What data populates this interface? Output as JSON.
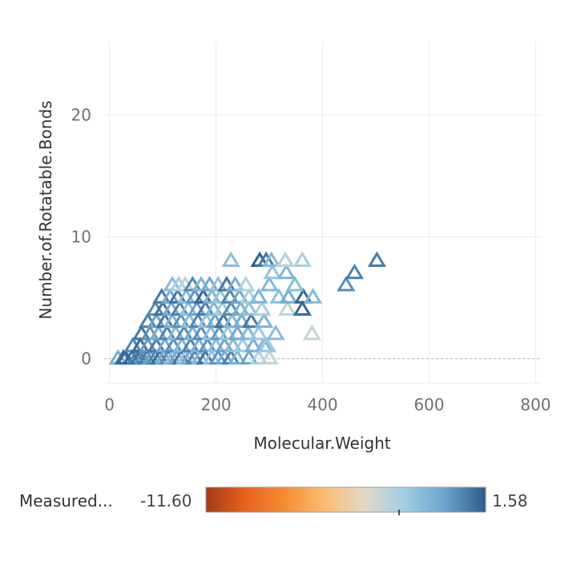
{
  "chart_data": {
    "type": "scatter",
    "marker": "triangle-open",
    "xlabel": "Molecular.Weight",
    "ylabel": "Number.of.Rotatable.Bonds",
    "xlim": [
      -10,
      810
    ],
    "ylim": [
      -2,
      26
    ],
    "xticks": [
      0,
      200,
      400,
      600,
      800
    ],
    "yticks": [
      0,
      10,
      20
    ],
    "grid": true,
    "zero_line": true,
    "legend": {
      "title": "Measured...",
      "min_label": "-11.60",
      "max_label": "1.58",
      "min": -11.6,
      "max": 1.58,
      "marker_value": -2.5,
      "placement": "bottom"
    },
    "color_scale": {
      "stops": [
        "#a3391b",
        "#e8631c",
        "#f68d35",
        "#fbbf74",
        "#dfd9c8",
        "#9fcde3",
        "#6aa3cd",
        "#2c5c8a"
      ]
    },
    "points": [
      {
        "x": 16,
        "y": 0,
        "c": -0.8
      },
      {
        "x": 26,
        "y": 0,
        "c": 0.9
      },
      {
        "x": 30,
        "y": 0,
        "c": 1.2
      },
      {
        "x": 42,
        "y": 0,
        "c": 1.3
      },
      {
        "x": 50,
        "y": 0,
        "c": 0.6
      },
      {
        "x": 56,
        "y": 0,
        "c": 1.0
      },
      {
        "x": 62,
        "y": 0,
        "c": 0.2
      },
      {
        "x": 70,
        "y": 0,
        "c": 0.7
      },
      {
        "x": 78,
        "y": 0,
        "c": -0.3
      },
      {
        "x": 86,
        "y": 0,
        "c": 0.4
      },
      {
        "x": 94,
        "y": 0,
        "c": 1.1
      },
      {
        "x": 102,
        "y": 0,
        "c": -0.9
      },
      {
        "x": 110,
        "y": 0,
        "c": 0.3
      },
      {
        "x": 118,
        "y": 0,
        "c": -1.5
      },
      {
        "x": 126,
        "y": 0,
        "c": -0.5
      },
      {
        "x": 134,
        "y": 0,
        "c": 0.8
      },
      {
        "x": 142,
        "y": 0,
        "c": -2.0
      },
      {
        "x": 150,
        "y": 0,
        "c": -0.7
      },
      {
        "x": 160,
        "y": 0,
        "c": 0.5
      },
      {
        "x": 170,
        "y": 0,
        "c": -1.2
      },
      {
        "x": 180,
        "y": 0,
        "c": 1.0
      },
      {
        "x": 192,
        "y": 0,
        "c": -1.8
      },
      {
        "x": 204,
        "y": 0,
        "c": 0.1
      },
      {
        "x": 216,
        "y": 0,
        "c": -0.6
      },
      {
        "x": 228,
        "y": 0,
        "c": 0.6
      },
      {
        "x": 240,
        "y": 0,
        "c": -1.0
      },
      {
        "x": 262,
        "y": 0,
        "c": -0.4
      },
      {
        "x": 280,
        "y": 0,
        "c": -2.6
      },
      {
        "x": 300,
        "y": 0,
        "c": -3.2
      },
      {
        "x": 44,
        "y": 1,
        "c": 0.5
      },
      {
        "x": 58,
        "y": 1,
        "c": 1.2
      },
      {
        "x": 72,
        "y": 1,
        "c": 0.0
      },
      {
        "x": 88,
        "y": 1,
        "c": 0.8
      },
      {
        "x": 104,
        "y": 1,
        "c": -0.6
      },
      {
        "x": 120,
        "y": 1,
        "c": 0.3
      },
      {
        "x": 136,
        "y": 1,
        "c": -1.1
      },
      {
        "x": 152,
        "y": 1,
        "c": 0.6
      },
      {
        "x": 168,
        "y": 1,
        "c": -0.9
      },
      {
        "x": 184,
        "y": 1,
        "c": 0.2
      },
      {
        "x": 200,
        "y": 1,
        "c": -1.6
      },
      {
        "x": 216,
        "y": 1,
        "c": -0.3
      },
      {
        "x": 232,
        "y": 1,
        "c": -1.3
      },
      {
        "x": 250,
        "y": 1,
        "c": -2.2
      },
      {
        "x": 270,
        "y": 1,
        "c": -0.8
      },
      {
        "x": 290,
        "y": 1,
        "c": -1.0
      },
      {
        "x": 296,
        "y": 1,
        "c": -1.9
      },
      {
        "x": 60,
        "y": 2,
        "c": 0.9
      },
      {
        "x": 76,
        "y": 2,
        "c": 0.1
      },
      {
        "x": 92,
        "y": 2,
        "c": -0.7
      },
      {
        "x": 108,
        "y": 2,
        "c": 0.6
      },
      {
        "x": 124,
        "y": 2,
        "c": -1.2
      },
      {
        "x": 140,
        "y": 2,
        "c": 0.4
      },
      {
        "x": 156,
        "y": 2,
        "c": -0.8
      },
      {
        "x": 172,
        "y": 2,
        "c": 0.3
      },
      {
        "x": 190,
        "y": 2,
        "c": -1.5
      },
      {
        "x": 206,
        "y": 2,
        "c": 0.0
      },
      {
        "x": 222,
        "y": 2,
        "c": -1.9
      },
      {
        "x": 240,
        "y": 2,
        "c": -0.5
      },
      {
        "x": 260,
        "y": 2,
        "c": -1.1
      },
      {
        "x": 280,
        "y": 2,
        "c": -2.0
      },
      {
        "x": 312,
        "y": 2,
        "c": -1.4
      },
      {
        "x": 380,
        "y": 2,
        "c": -3.4
      },
      {
        "x": 72,
        "y": 3,
        "c": 0.7
      },
      {
        "x": 88,
        "y": 3,
        "c": -0.2
      },
      {
        "x": 104,
        "y": 3,
        "c": 0.9
      },
      {
        "x": 118,
        "y": 3,
        "c": -0.9
      },
      {
        "x": 134,
        "y": 3,
        "c": 0.2
      },
      {
        "x": 150,
        "y": 3,
        "c": -1.4
      },
      {
        "x": 166,
        "y": 3,
        "c": 0.5
      },
      {
        "x": 182,
        "y": 3,
        "c": -1.7
      },
      {
        "x": 198,
        "y": 3,
        "c": -0.3
      },
      {
        "x": 214,
        "y": 3,
        "c": 1.0
      },
      {
        "x": 230,
        "y": 3,
        "c": -1.2
      },
      {
        "x": 248,
        "y": 3,
        "c": -0.6
      },
      {
        "x": 266,
        "y": 3,
        "c": 0.8
      },
      {
        "x": 290,
        "y": 3,
        "c": -1.0
      },
      {
        "x": 86,
        "y": 4,
        "c": 0.4
      },
      {
        "x": 100,
        "y": 4,
        "c": 1.0
      },
      {
        "x": 116,
        "y": 4,
        "c": -0.7
      },
      {
        "x": 132,
        "y": 4,
        "c": 0.6
      },
      {
        "x": 148,
        "y": 4,
        "c": -1.6
      },
      {
        "x": 164,
        "y": 4,
        "c": -0.2
      },
      {
        "x": 180,
        "y": 4,
        "c": 0.7
      },
      {
        "x": 196,
        "y": 4,
        "c": -1.1
      },
      {
        "x": 212,
        "y": 4,
        "c": -2.1
      },
      {
        "x": 228,
        "y": 4,
        "c": 0.3
      },
      {
        "x": 246,
        "y": 4,
        "c": -0.8
      },
      {
        "x": 262,
        "y": 4,
        "c": -1.5
      },
      {
        "x": 286,
        "y": 4,
        "c": -2.4
      },
      {
        "x": 334,
        "y": 4,
        "c": -3.1
      },
      {
        "x": 362,
        "y": 4,
        "c": 1.3
      },
      {
        "x": 98,
        "y": 5,
        "c": 0.8
      },
      {
        "x": 114,
        "y": 5,
        "c": -0.5
      },
      {
        "x": 128,
        "y": 5,
        "c": 0.9
      },
      {
        "x": 144,
        "y": 5,
        "c": -1.3
      },
      {
        "x": 160,
        "y": 5,
        "c": 0.1
      },
      {
        "x": 176,
        "y": 5,
        "c": 1.4
      },
      {
        "x": 192,
        "y": 5,
        "c": -0.9
      },
      {
        "x": 208,
        "y": 5,
        "c": -1.8
      },
      {
        "x": 226,
        "y": 5,
        "c": 0.5
      },
      {
        "x": 244,
        "y": 5,
        "c": -0.4
      },
      {
        "x": 262,
        "y": 5,
        "c": -2.3
      },
      {
        "x": 280,
        "y": 5,
        "c": -1.0
      },
      {
        "x": 318,
        "y": 5,
        "c": -1.6
      },
      {
        "x": 336,
        "y": 5,
        "c": -0.7
      },
      {
        "x": 364,
        "y": 5,
        "c": 1.4
      },
      {
        "x": 382,
        "y": 5,
        "c": -1.3
      },
      {
        "x": 118,
        "y": 6,
        "c": -1.3
      },
      {
        "x": 130,
        "y": 6,
        "c": -2.3
      },
      {
        "x": 142,
        "y": 6,
        "c": -3.0
      },
      {
        "x": 156,
        "y": 6,
        "c": 0.4
      },
      {
        "x": 172,
        "y": 6,
        "c": -1.0
      },
      {
        "x": 188,
        "y": 6,
        "c": -0.4
      },
      {
        "x": 204,
        "y": 6,
        "c": -1.7
      },
      {
        "x": 220,
        "y": 6,
        "c": 0.9
      },
      {
        "x": 236,
        "y": 6,
        "c": -0.8
      },
      {
        "x": 256,
        "y": 6,
        "c": -2.7
      },
      {
        "x": 300,
        "y": 6,
        "c": -1.2
      },
      {
        "x": 348,
        "y": 6,
        "c": -1.4
      },
      {
        "x": 444,
        "y": 6,
        "c": 0.3
      },
      {
        "x": 306,
        "y": 7,
        "c": -1.7
      },
      {
        "x": 332,
        "y": 7,
        "c": -1.1
      },
      {
        "x": 460,
        "y": 7,
        "c": 0.6
      },
      {
        "x": 228,
        "y": 8,
        "c": -1.5
      },
      {
        "x": 282,
        "y": 8,
        "c": 1.5
      },
      {
        "x": 294,
        "y": 8,
        "c": 0.8
      },
      {
        "x": 304,
        "y": 8,
        "c": -1.2
      },
      {
        "x": 330,
        "y": 8,
        "c": -2.8
      },
      {
        "x": 362,
        "y": 8,
        "c": -2.4
      },
      {
        "x": 502,
        "y": 8,
        "c": 0.7
      }
    ]
  }
}
